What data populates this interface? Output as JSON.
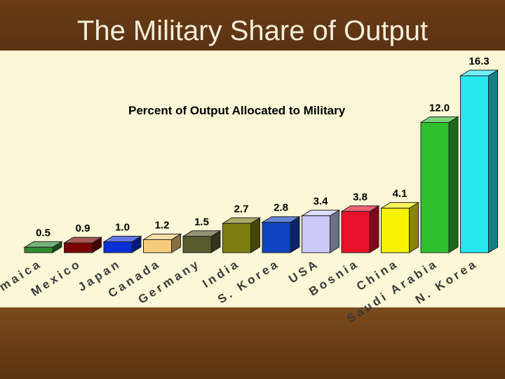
{
  "slide": {
    "title": "The Military Share of Output"
  },
  "chart_data": {
    "type": "bar",
    "title": "Percent of Output Allocated to Military",
    "categories": [
      "Jamaica",
      "Mexico",
      "Japan",
      "Canada",
      "Germany",
      "India",
      "S. Korea",
      "USA",
      "Bosnia",
      "China",
      "Saudi Arabia",
      "N. Korea"
    ],
    "values": [
      0.5,
      0.9,
      1.0,
      1.2,
      1.5,
      2.7,
      2.8,
      3.4,
      3.8,
      4.1,
      12.0,
      16.3
    ],
    "value_labels": [
      "0.5",
      "0.9",
      "1.0",
      "1.2",
      "1.5",
      "2.7",
      "2.8",
      "3.4",
      "3.8",
      "4.1",
      "12.0",
      "16.3"
    ],
    "colors": [
      "#2e8b2e",
      "#7a0000",
      "#0b2fd6",
      "#f6cc7a",
      "#5a5a2e",
      "#7d7d10",
      "#0e44c0",
      "#c9c9f7",
      "#e8102a",
      "#f7f200",
      "#2fbf2f",
      "#27e6f2"
    ],
    "xlabel": "",
    "ylabel": "",
    "ylim": [
      0,
      16.3
    ],
    "grid": false,
    "legend": "none"
  }
}
